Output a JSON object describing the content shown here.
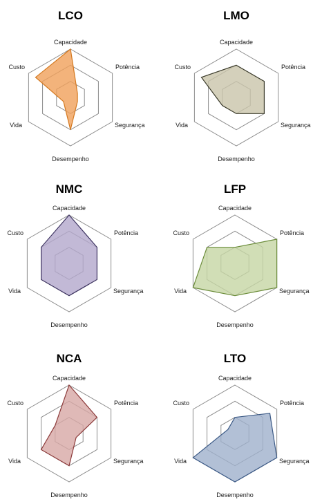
{
  "chart_data": [
    {
      "type": "radar",
      "title": "LCO",
      "axes": [
        "Capacidade",
        "Potência",
        "Segurança",
        "Desempenho",
        "Vida",
        "Custo"
      ],
      "max": 4,
      "grid": true,
      "values": [
        4,
        1.5,
        1.5,
        3,
        1.5,
        3.5
      ],
      "color": "#f0a05a",
      "stroke": "#d4781e"
    },
    {
      "type": "radar",
      "title": "LMO",
      "axes": [
        "Capacidade",
        "Potência",
        "Segurança",
        "Desempenho",
        "Vida",
        "Custo"
      ],
      "max": 4,
      "grid": true,
      "values": [
        3,
        3,
        3,
        2,
        2,
        3.5
      ],
      "color": "#c9c4aa",
      "stroke": "#3a3a2a"
    },
    {
      "type": "radar",
      "title": "NMC",
      "axes": [
        "Capacidade",
        "Potência",
        "Segurança",
        "Desempenho",
        "Vida",
        "Custo"
      ],
      "max": 4,
      "grid": true,
      "values": [
        4,
        3,
        3,
        3,
        3,
        3
      ],
      "color": "#b3a8cc",
      "stroke": "#3d3360"
    },
    {
      "type": "radar",
      "title": "LFP",
      "axes": [
        "Capacidade",
        "Potência",
        "Segurança",
        "Desempenho",
        "Vida",
        "Custo"
      ],
      "max": 4,
      "grid": true,
      "values": [
        2,
        4,
        4,
        3,
        4,
        3
      ],
      "color": "#c5d6a4",
      "stroke": "#6b8c3a"
    },
    {
      "type": "radar",
      "title": "NCA",
      "axes": [
        "Capacidade",
        "Potência",
        "Segurança",
        "Desempenho",
        "Vida",
        "Custo"
      ],
      "max": 4,
      "grid": true,
      "values": [
        4,
        3,
        1.5,
        3,
        3,
        2
      ],
      "color": "#d7a7a5",
      "stroke": "#8c3a3a"
    },
    {
      "type": "radar",
      "title": "LTO",
      "axes": [
        "Capacidade",
        "Potência",
        "Segurança",
        "Desempenho",
        "Vida",
        "Custo"
      ],
      "max": 4,
      "grid": true,
      "values": [
        2,
        3.5,
        4,
        4,
        4,
        1.5
      ],
      "color": "#9fb0cc",
      "stroke": "#3c5a86"
    }
  ]
}
